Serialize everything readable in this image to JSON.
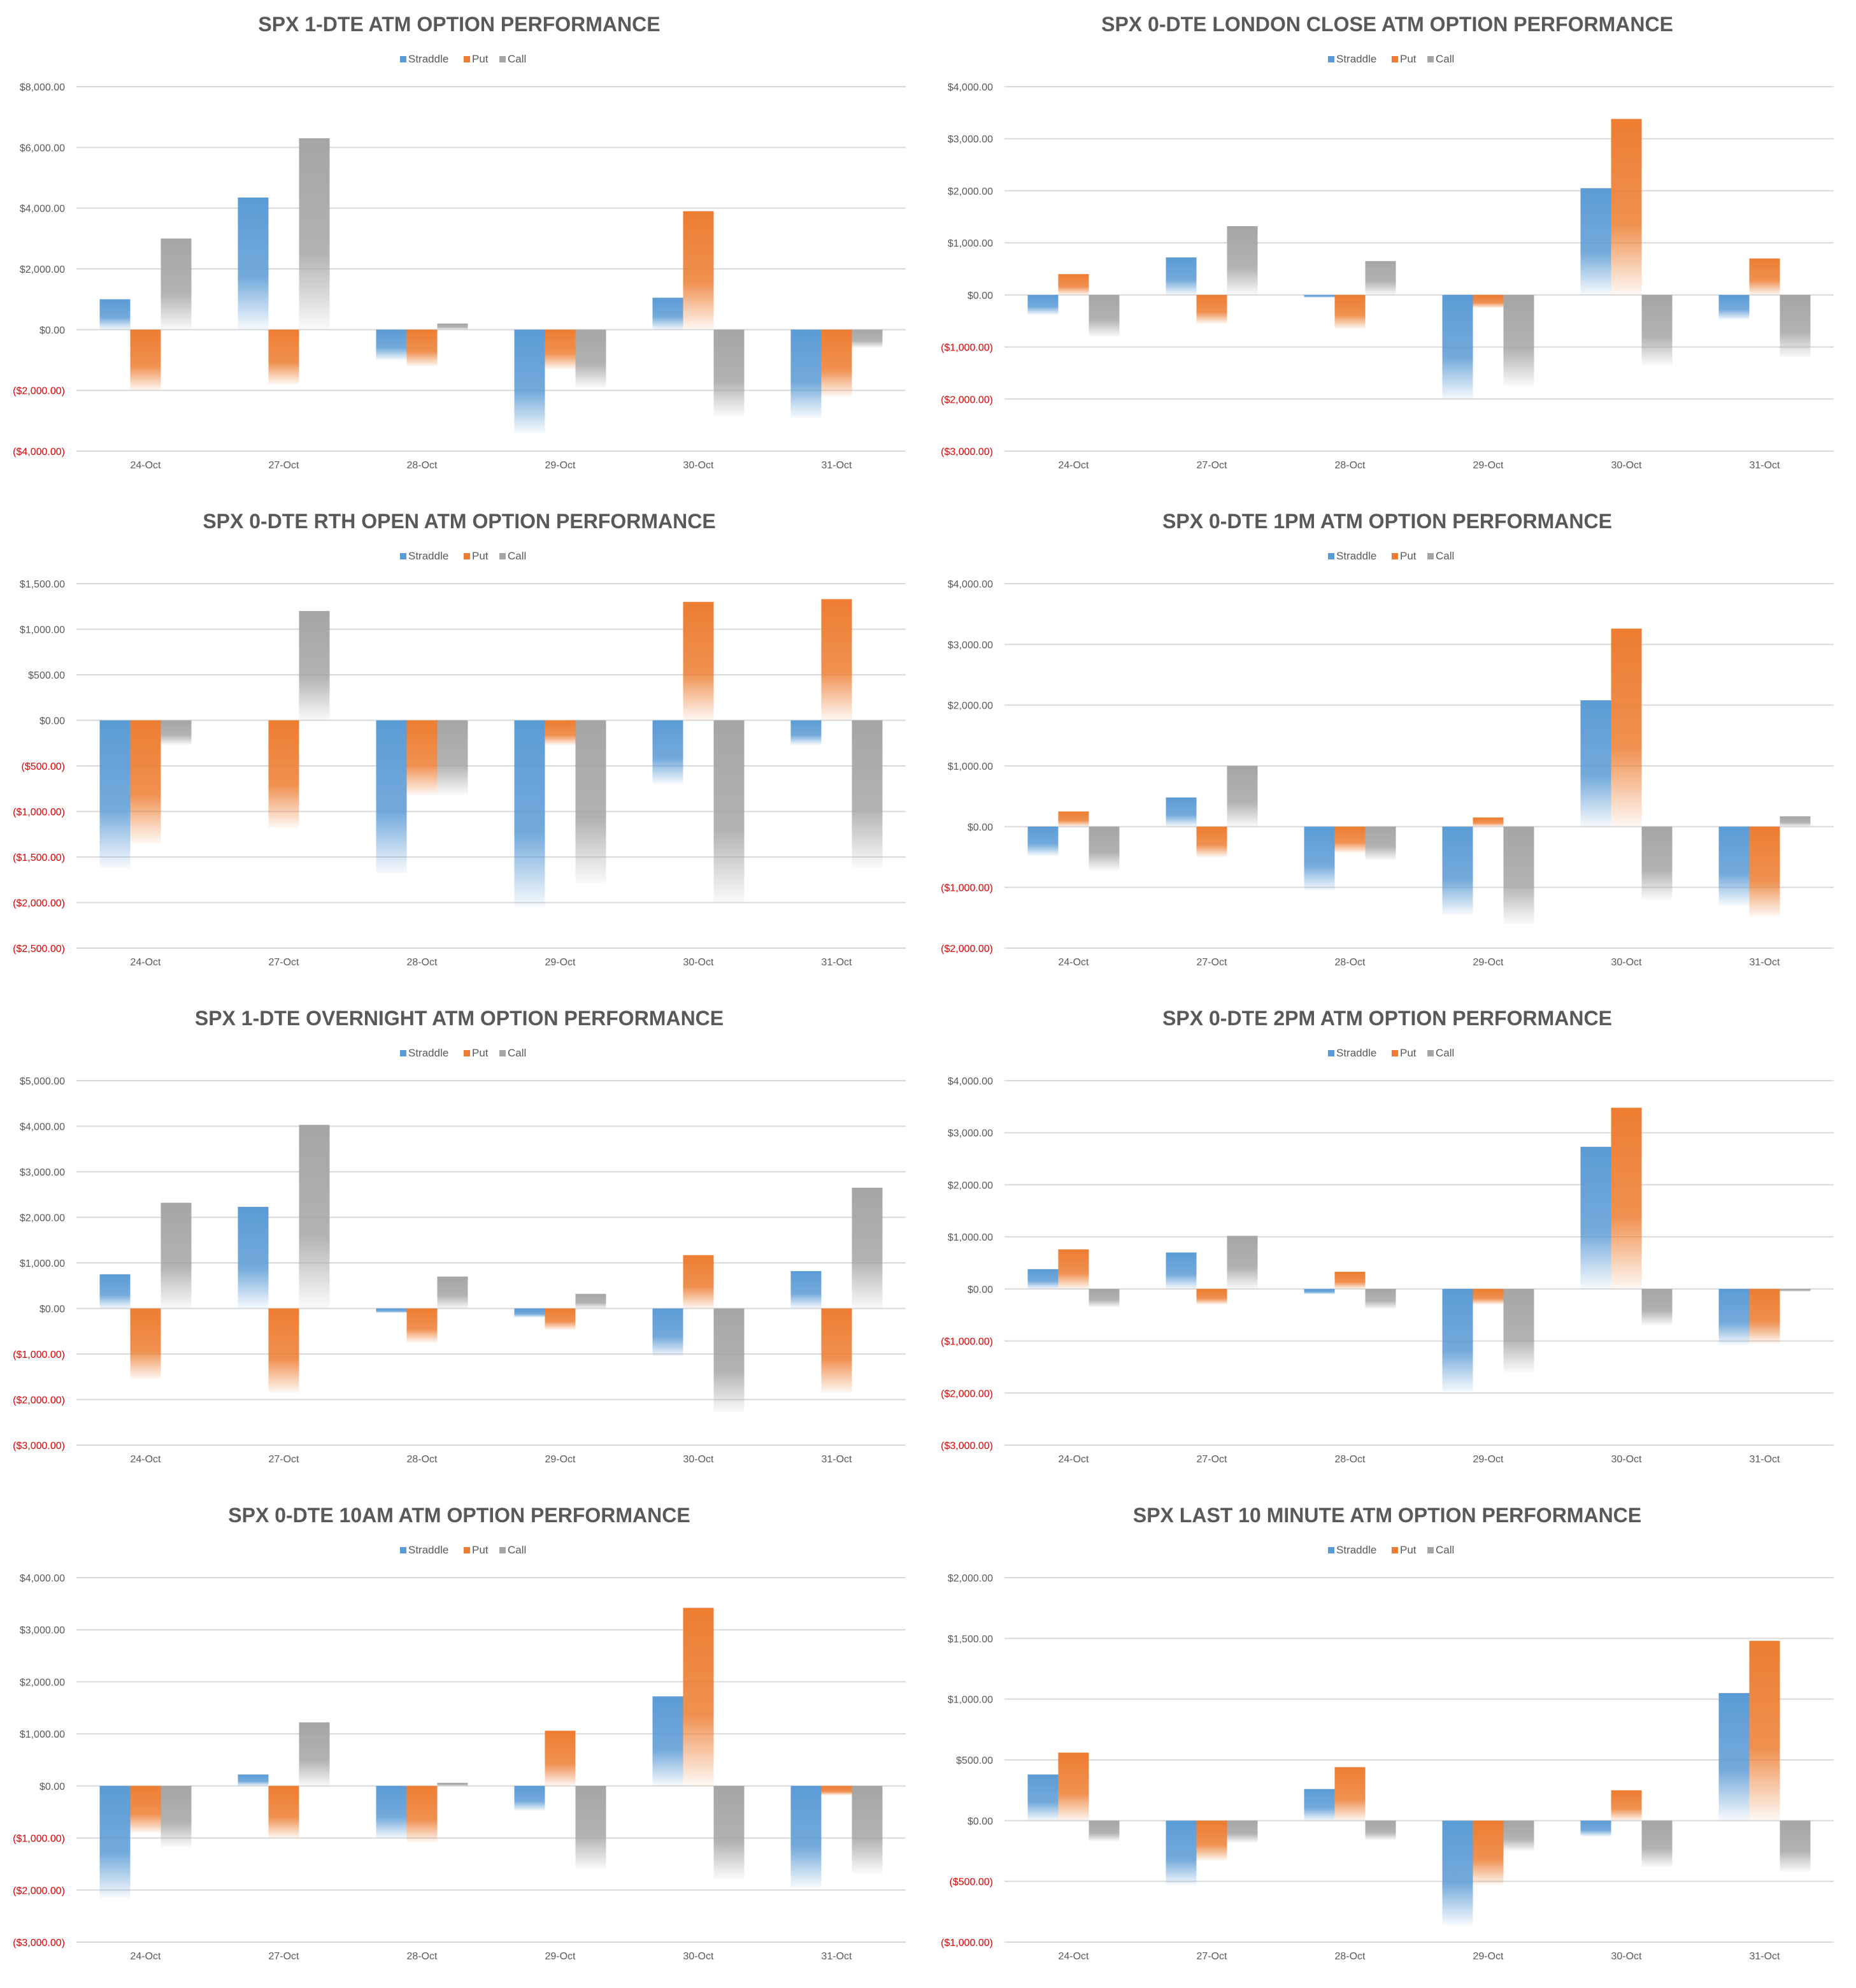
{
  "colors": {
    "Straddle": "#5b9bd5",
    "Put": "#ed7d31",
    "Call": "#a5a5a5",
    "gridline": "#d9d9d9",
    "negative_tick": "#e00000",
    "text": "#595959"
  },
  "chart_data": [
    {
      "type": "bar",
      "title": "SPX 1-DTE ATM OPTION PERFORMANCE",
      "categories": [
        "24-Oct",
        "27-Oct",
        "28-Oct",
        "29-Oct",
        "30-Oct",
        "31-Oct"
      ],
      "series": [
        {
          "name": "Straddle",
          "values": [
            1000,
            4350,
            -1000,
            -3400,
            1050,
            -2900
          ]
        },
        {
          "name": "Put",
          "values": [
            -2000,
            -1800,
            -1200,
            -1300,
            3900,
            -2200
          ]
        },
        {
          "name": "Call",
          "values": [
            3000,
            6300,
            200,
            -1900,
            -2850,
            -600
          ]
        }
      ],
      "ylim": [
        -4000,
        8000
      ],
      "yticks": [
        8000,
        6000,
        4000,
        2000,
        0,
        -2000,
        -4000
      ],
      "ytick_labels": [
        "$8,000.00",
        "$6,000.00",
        "$4,000.00",
        "$2,000.00",
        "$0.00",
        "($2,000.00)",
        "($4,000.00)"
      ],
      "legend": "top-center",
      "grid": true
    },
    {
      "type": "bar",
      "title": "SPX 0-DTE  LONDON CLOSE ATM OPTION PERFORMANCE",
      "categories": [
        "24-Oct",
        "27-Oct",
        "28-Oct",
        "29-Oct",
        "30-Oct",
        "31-Oct"
      ],
      "series": [
        {
          "name": "Straddle",
          "values": [
            -380,
            720,
            -50,
            -2000,
            2050,
            -470
          ]
        },
        {
          "name": "Put",
          "values": [
            400,
            -550,
            -650,
            -250,
            3380,
            700
          ]
        },
        {
          "name": "Call",
          "values": [
            -800,
            1320,
            650,
            -1750,
            -1350,
            -1200
          ]
        }
      ],
      "ylim": [
        -3000,
        4000
      ],
      "yticks": [
        4000,
        3000,
        2000,
        1000,
        0,
        -1000,
        -2000,
        -3000
      ],
      "ytick_labels": [
        "$4,000.00",
        "$3,000.00",
        "$2,000.00",
        "$1,000.00",
        "$0.00",
        "($1,000.00)",
        "($2,000.00)",
        "($3,000.00)"
      ],
      "legend": "top-center",
      "grid": true
    },
    {
      "type": "bar",
      "title": "SPX 0-DTE RTH OPEN ATM OPTION PERFORMANCE",
      "categories": [
        "24-Oct",
        "27-Oct",
        "28-Oct",
        "29-Oct",
        "30-Oct",
        "31-Oct"
      ],
      "series": [
        {
          "name": "Straddle",
          "values": [
            -1620,
            0,
            -1680,
            -2050,
            -700,
            -270
          ]
        },
        {
          "name": "Put",
          "values": [
            -1350,
            -1180,
            -820,
            -270,
            1300,
            1330
          ]
        },
        {
          "name": "Call",
          "values": [
            -270,
            1200,
            -820,
            -1790,
            -2000,
            -1620
          ]
        }
      ],
      "ylim": [
        -2500,
        1500
      ],
      "yticks": [
        1500,
        1000,
        500,
        0,
        -500,
        -1000,
        -1500,
        -2000,
        -2500
      ],
      "ytick_labels": [
        "$1,500.00",
        "$1,000.00",
        "$500.00",
        "$0.00",
        "($500.00)",
        "($1,000.00)",
        "($1,500.00)",
        "($2,000.00)",
        "($2,500.00)"
      ],
      "legend": "top-center",
      "grid": true
    },
    {
      "type": "bar",
      "title": "SPX 0-DTE 1PM ATM OPTION PERFORMANCE",
      "categories": [
        "24-Oct",
        "27-Oct",
        "28-Oct",
        "29-Oct",
        "30-Oct",
        "31-Oct"
      ],
      "series": [
        {
          "name": "Straddle",
          "values": [
            -480,
            480,
            -1050,
            -1450,
            2080,
            -1300
          ]
        },
        {
          "name": "Put",
          "values": [
            250,
            -500,
            -430,
            150,
            3260,
            -1480
          ]
        },
        {
          "name": "Call",
          "values": [
            -720,
            1000,
            -550,
            -1600,
            -1200,
            170
          ]
        }
      ],
      "ylim": [
        -2000,
        4000
      ],
      "yticks": [
        4000,
        3000,
        2000,
        1000,
        0,
        -1000,
        -2000
      ],
      "ytick_labels": [
        "$4,000.00",
        "$3,000.00",
        "$2,000.00",
        "$1,000.00",
        "$0.00",
        "($1,000.00)",
        "($2,000.00)"
      ],
      "legend": "top-center",
      "grid": true
    },
    {
      "type": "bar",
      "title": "SPX 1-DTE OVERNIGHT ATM OPTION PERFORMANCE",
      "categories": [
        "24-Oct",
        "27-Oct",
        "28-Oct",
        "29-Oct",
        "30-Oct",
        "31-Oct"
      ],
      "series": [
        {
          "name": "Straddle",
          "values": [
            750,
            2230,
            -100,
            -200,
            -1050,
            820
          ]
        },
        {
          "name": "Put",
          "values": [
            -1550,
            -1850,
            -750,
            -470,
            1170,
            -1850
          ]
        },
        {
          "name": "Call",
          "values": [
            2320,
            4030,
            700,
            320,
            -2280,
            2650
          ]
        }
      ],
      "ylim": [
        -3000,
        5000
      ],
      "yticks": [
        5000,
        4000,
        3000,
        2000,
        1000,
        0,
        -1000,
        -2000,
        -3000
      ],
      "ytick_labels": [
        "$5,000.00",
        "$4,000.00",
        "$3,000.00",
        "$2,000.00",
        "$1,000.00",
        "$0.00",
        "($1,000.00)",
        "($2,000.00)",
        "($3,000.00)"
      ],
      "legend": "top-center",
      "grid": true
    },
    {
      "type": "bar",
      "title": "SPX 0-DTE 2PM ATM OPTION PERFORMANCE",
      "categories": [
        "24-Oct",
        "27-Oct",
        "28-Oct",
        "29-Oct",
        "30-Oct",
        "31-Oct"
      ],
      "series": [
        {
          "name": "Straddle",
          "values": [
            380,
            700,
            -100,
            -1980,
            2730,
            -1080
          ]
        },
        {
          "name": "Put",
          "values": [
            760,
            -300,
            330,
            -300,
            3480,
            -1050
          ]
        },
        {
          "name": "Call",
          "values": [
            -350,
            1020,
            -380,
            -1600,
            -700,
            -50
          ]
        }
      ],
      "ylim": [
        -3000,
        4000
      ],
      "yticks": [
        4000,
        3000,
        2000,
        1000,
        0,
        -1000,
        -2000,
        -3000
      ],
      "ytick_labels": [
        "$4,000.00",
        "$3,000.00",
        "$2,000.00",
        "$1,000.00",
        "$0.00",
        "($1,000.00)",
        "($2,000.00)",
        "($3,000.00)"
      ],
      "legend": "top-center",
      "grid": true
    },
    {
      "type": "bar",
      "title": "SPX 0-DTE 10AM ATM OPTION PERFORMANCE",
      "categories": [
        "24-Oct",
        "27-Oct",
        "28-Oct",
        "29-Oct",
        "30-Oct",
        "31-Oct"
      ],
      "series": [
        {
          "name": "Straddle",
          "values": [
            -2150,
            220,
            -1000,
            -480,
            1720,
            -1950
          ]
        },
        {
          "name": "Put",
          "values": [
            -900,
            -1000,
            -1080,
            1060,
            3420,
            -180
          ]
        },
        {
          "name": "Call",
          "values": [
            -1170,
            1220,
            60,
            -1600,
            -1780,
            -1680
          ]
        }
      ],
      "ylim": [
        -3000,
        4000
      ],
      "yticks": [
        4000,
        3000,
        2000,
        1000,
        0,
        -1000,
        -2000,
        -3000
      ],
      "ytick_labels": [
        "$4,000.00",
        "$3,000.00",
        "$2,000.00",
        "$1,000.00",
        "$0.00",
        "($1,000.00)",
        "($2,000.00)",
        "($3,000.00)"
      ],
      "legend": "top-center",
      "grid": true
    },
    {
      "type": "bar",
      "title": "SPX LAST 10 MINUTE ATM OPTION PERFORMANCE",
      "categories": [
        "24-Oct",
        "27-Oct",
        "28-Oct",
        "29-Oct",
        "30-Oct",
        "31-Oct"
      ],
      "series": [
        {
          "name": "Straddle",
          "values": [
            380,
            -530,
            260,
            -860,
            -130,
            1050
          ]
        },
        {
          "name": "Put",
          "values": [
            560,
            -330,
            440,
            -530,
            250,
            1480
          ]
        },
        {
          "name": "Call",
          "values": [
            -170,
            -180,
            -160,
            -250,
            -380,
            -420
          ]
        }
      ],
      "ylim": [
        -1000,
        2000
      ],
      "yticks": [
        2000,
        1500,
        1000,
        500,
        0,
        -500,
        -1000
      ],
      "ytick_labels": [
        "$2,000.00",
        "$1,500.00",
        "$1,000.00",
        "$500.00",
        "$0.00",
        "($500.00)",
        "($1,000.00)"
      ],
      "legend": "top-center",
      "grid": true
    }
  ]
}
